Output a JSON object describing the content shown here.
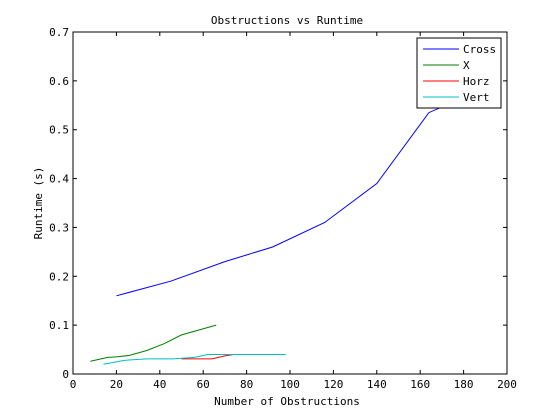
{
  "chart_data": {
    "type": "line",
    "title": "Obstructions vs Runtime",
    "xlabel": "Number of Obstructions",
    "ylabel": "Runtime (s)",
    "xlim": [
      0,
      200
    ],
    "ylim": [
      0,
      0.7
    ],
    "xticks": [
      0,
      20,
      40,
      60,
      80,
      100,
      120,
      140,
      160,
      180,
      200
    ],
    "yticks": [
      0,
      0.1,
      0.2,
      0.3,
      0.4,
      0.5,
      0.6,
      0.7
    ],
    "xtick_labels": [
      "0",
      "20",
      "40",
      "60",
      "80",
      "100",
      "120",
      "140",
      "160",
      "180",
      "200"
    ],
    "ytick_labels": [
      "0",
      "0.1",
      "0.2",
      "0.3",
      "0.4",
      "0.5",
      "0.6",
      "0.7"
    ],
    "grid": false,
    "legend_position": "top-right",
    "series": [
      {
        "name": "Cross",
        "color": "#0000ff",
        "x": [
          20,
          45,
          70,
          92,
          116,
          140,
          164,
          178,
          185
        ],
        "y": [
          0.16,
          0.19,
          0.23,
          0.26,
          0.31,
          0.39,
          0.535,
          0.562,
          0.625
        ]
      },
      {
        "name": "X",
        "color": "#007f00",
        "x": [
          8,
          16,
          20,
          26,
          34,
          42,
          50,
          58,
          66
        ],
        "y": [
          0.026,
          0.034,
          0.035,
          0.038,
          0.048,
          0.062,
          0.08,
          0.09,
          0.1
        ]
      },
      {
        "name": "Horz",
        "color": "#ff0000",
        "x": [
          50,
          60,
          64,
          70,
          74
        ],
        "y": [
          0.031,
          0.031,
          0.031,
          0.037,
          0.04
        ]
      },
      {
        "name": "Vert",
        "color": "#00bfbf",
        "x": [
          14,
          24,
          34,
          46,
          56,
          62,
          72,
          84,
          98
        ],
        "y": [
          0.02,
          0.028,
          0.031,
          0.031,
          0.034,
          0.04,
          0.04,
          0.04,
          0.04
        ]
      }
    ]
  }
}
